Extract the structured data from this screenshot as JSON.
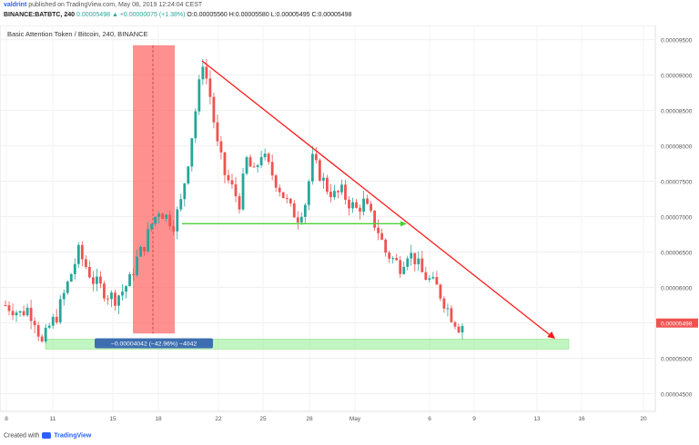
{
  "header": {
    "user": "valdrint",
    "published": "published on TradingView.com, May 08, 2019 12:24:04 CEST",
    "ticker": "BINANCE:BATBTC, 240",
    "last": "0.00005498",
    "change_arrow": "▲",
    "change": "+0.00000075 (+1.38%)",
    "o": "O:0.00005560",
    "h": "H:0.00005580",
    "l": "L:0.00005495",
    "c": "C:0.00005498"
  },
  "footer": {
    "created_with": "Created with",
    "brand": "TradingView"
  },
  "colors": {
    "up": "#26a69a",
    "down": "#ef5350",
    "red_box": "#ff6b6b",
    "green_zone": "#90ee90",
    "trend_line": "#ff1a1a",
    "horizontal_line": "#4cd137",
    "label_bg": "#3d6fb0",
    "price_tag": "#ef5350"
  },
  "chart_data": {
    "type": "candlestick",
    "title": "Basic Attention Token / Bitcoin, 240, BINANCE",
    "x_ticks": [
      "8",
      "11",
      "15",
      "18",
      "22",
      "25",
      "28",
      "May",
      "6",
      "9",
      "13",
      "16",
      "20"
    ],
    "y_ticks": [
      "0.00009500",
      "0.00009000",
      "0.00008500",
      "0.00008000",
      "0.00007500",
      "0.00007000",
      "0.00006500",
      "0.00006000",
      "0.00005500",
      "0.00005000",
      "0.00004500"
    ],
    "ylim": [
      4.25e-05,
      9.7e-05
    ],
    "last_price_label": "0.00005498",
    "measure_label": "−0.00004042 (−42.96%) −4042",
    "price_path": [
      5.75e-05,
      5.7e-05,
      5.63e-05,
      5.7e-05,
      5.55e-05,
      5.2e-05,
      5.45e-05,
      5.6e-05,
      5.9e-05,
      6.2e-05,
      6.5e-05,
      6.3e-05,
      6.1e-05,
      6e-05,
      5.9e-05,
      5.85e-05,
      5.95e-05,
      6.1e-05,
      6.4e-05,
      6.6e-05,
      6.9e-05,
      7.1e-05,
      7e-05,
      6.9e-05,
      7.2e-05,
      7.8e-05,
      8.5e-05,
      9.2e-05,
      8.7e-05,
      8e-05,
      7.6e-05,
      7.4e-05,
      7.2e-05,
      7.8e-05,
      7.6e-05,
      7.9e-05,
      7.7e-05,
      7.5e-05,
      7.3e-05,
      7.1e-05,
      7e-05,
      7.2e-05,
      7.8e-05,
      7.6e-05,
      7.4e-05,
      7.3e-05,
      7.35e-05,
      7.2e-05,
      7.1e-05,
      7.2e-05,
      7e-05,
      6.8e-05,
      6.5e-05,
      6.4e-05,
      6.3e-05,
      6.5e-05,
      6.4e-05,
      6.2e-05,
      6.1e-05,
      6e-05,
      5.8e-05,
      5.6e-05,
      5.45e-05,
      5.5e-05
    ],
    "annotations": {
      "red_box_x": [
        "16.3",
        "19"
      ],
      "red_box_y": [
        5.35e-05,
        9.42e-05
      ],
      "green_zone_y": [
        5.13e-05,
        5.27e-05
      ],
      "green_zone_x": [
        "11",
        "15.2 May"
      ],
      "horizontal_level": 6.9e-05,
      "trend_line_start_y": 9.2e-05,
      "trend_line_end_y": 5.3e-05
    }
  }
}
